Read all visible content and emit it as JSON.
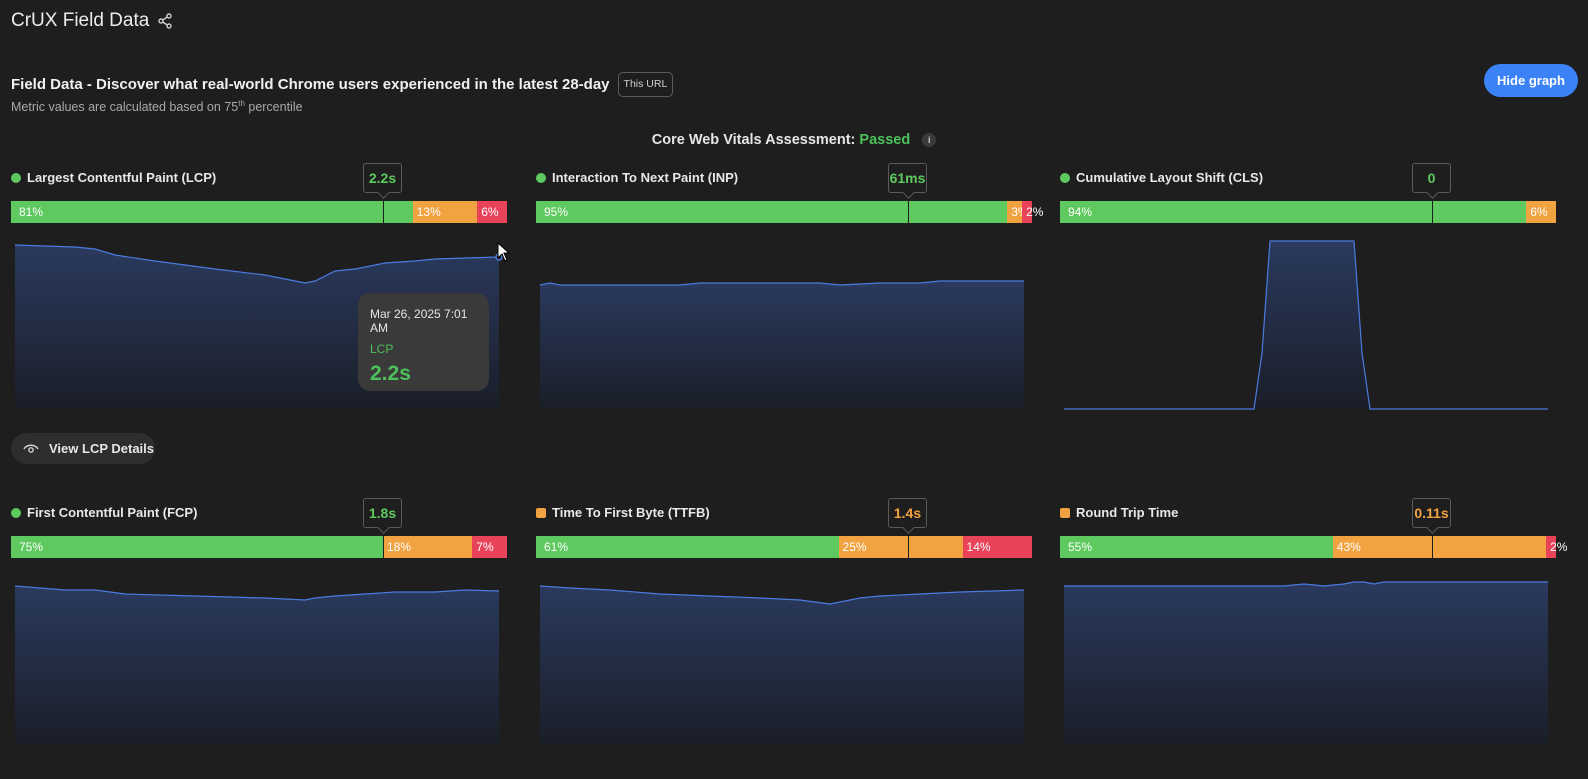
{
  "header": {
    "title": "CrUX Field Data",
    "headline": "Field Data - Discover what real-world Chrome users experienced in the latest 28-day",
    "scope_badge": "This URL",
    "subline_prefix": "Metric values are calculated based on 75",
    "subline_sup": "th",
    "subline_suffix": " percentile",
    "hide_graph_label": "Hide graph"
  },
  "assessment": {
    "label": "Core Web Vitals Assessment:",
    "status": "Passed",
    "info": "i"
  },
  "colors": {
    "good": "#5ec95e",
    "needs_improvement": "#f2a341",
    "poor": "#e9435a",
    "accent": "#3b82f6",
    "graph_line": "#4b7be0"
  },
  "metrics": [
    {
      "key": "lcp",
      "title": "Largest Contentful Paint (LCP)",
      "status": "good",
      "value": "2.2s",
      "good": "81%",
      "ni": "13%",
      "poor": "6%",
      "p75_position": 0.75
    },
    {
      "key": "inp",
      "title": "Interaction To Next Paint (INP)",
      "status": "good",
      "value": "61ms",
      "good": "95%",
      "ni": "3%",
      "poor": "2%",
      "p75_position": 0.75
    },
    {
      "key": "cls",
      "title": "Cumulative Layout Shift (CLS)",
      "status": "good",
      "value": "0",
      "good": "94%",
      "ni": "6%",
      "poor": "",
      "p75_position": 0.75
    },
    {
      "key": "fcp",
      "title": "First Contentful Paint (FCP)",
      "status": "good",
      "value": "1.8s",
      "good": "75%",
      "ni": "18%",
      "poor": "7%",
      "p75_position": 0.75
    },
    {
      "key": "ttfb",
      "title": "Time To First Byte (TTFB)",
      "status": "ni",
      "value": "1.4s",
      "good": "61%",
      "ni": "25%",
      "poor": "14%",
      "p75_position": 0.75
    },
    {
      "key": "rtt",
      "title": "Round Trip Time",
      "status": "ni",
      "value": "0.11s",
      "good": "55%",
      "ni": "43%",
      "poor": "2%",
      "p75_position": 0.75
    }
  ],
  "tooltip": {
    "date": "Mar 26, 2025 7:01 AM",
    "metric": "LCP",
    "value": "2.2s"
  },
  "view_details_label": "View LCP Details"
}
